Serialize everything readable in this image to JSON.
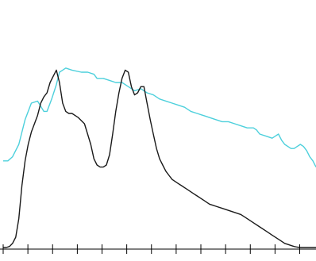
{
  "chart_data": {
    "type": "line",
    "title": "",
    "xlabel": "",
    "ylabel": "",
    "xlim": [
      0,
      100
    ],
    "ylim": [
      0,
      100
    ],
    "grid": false,
    "legend": "none",
    "x_ticks": [
      0,
      7.9,
      15.8,
      23.7,
      31.6,
      39.5,
      47.4,
      55.3,
      63.2,
      71.1,
      79.0,
      86.9,
      94.8
    ],
    "series": [
      {
        "color": "#4dd0dc",
        "x": [
          0,
          1.5,
          3,
          5,
          7,
          9,
          11,
          13,
          14,
          15.5,
          17,
          18,
          19,
          20,
          22,
          25,
          27,
          29,
          30,
          32,
          34,
          36,
          38,
          40,
          42,
          44,
          46,
          48,
          50,
          52,
          54,
          56,
          58,
          60,
          62,
          64,
          66,
          68,
          70,
          72,
          74,
          76,
          78,
          80,
          81,
          82,
          84,
          86,
          87,
          88,
          89,
          90,
          91,
          92,
          93,
          94,
          95,
          96,
          97,
          98,
          99,
          100
        ],
        "y": [
          42,
          42,
          44,
          50,
          62,
          70,
          71,
          66,
          66,
          72,
          79,
          85,
          86,
          87,
          86,
          85,
          85,
          84,
          82,
          82,
          81,
          80,
          80,
          78,
          76,
          77,
          75,
          74,
          72,
          71,
          70,
          69,
          68,
          66,
          65,
          64,
          63,
          62,
          61,
          61,
          60,
          59,
          58,
          58,
          57,
          55,
          54,
          53,
          54,
          55,
          52,
          50,
          49,
          48,
          48,
          49,
          50,
          49,
          47,
          44,
          42,
          39
        ]
      },
      {
        "color": "#1a1a1a",
        "x": [
          0,
          1,
          2,
          3,
          4,
          5,
          6,
          7,
          8,
          9,
          10,
          11,
          12,
          13,
          14,
          15,
          16,
          17,
          18,
          19,
          20,
          21,
          22,
          23,
          24,
          26,
          28,
          29,
          30,
          31,
          32,
          33,
          34,
          35,
          36,
          37,
          38,
          39,
          40,
          41,
          42,
          43,
          44,
          45,
          46,
          47,
          48,
          49,
          50,
          51,
          52,
          53,
          54,
          55,
          56,
          57,
          58,
          59,
          60,
          61,
          62,
          63,
          64,
          65,
          66,
          67,
          68,
          70,
          72,
          74,
          76,
          78,
          80,
          82,
          84,
          86,
          88,
          89,
          90,
          91,
          92,
          93,
          94,
          95,
          96,
          97,
          98,
          99,
          100
        ],
        "y": [
          0,
          0,
          0.5,
          2,
          5,
          14,
          30,
          42,
          50,
          56,
          60,
          64,
          70,
          73,
          75,
          80,
          83,
          86,
          80,
          70,
          66,
          65,
          65,
          64,
          63,
          60,
          50,
          43,
          40,
          39,
          39,
          40,
          45,
          55,
          66,
          75,
          82,
          86,
          85,
          78,
          74,
          75,
          78,
          78,
          70,
          62,
          55,
          48,
          43,
          40,
          37,
          35,
          33,
          32,
          31,
          30,
          29,
          28,
          27,
          26,
          25,
          24,
          23,
          22,
          21,
          20.5,
          20,
          19,
          18,
          17,
          16,
          14,
          12,
          10,
          8,
          6,
          4,
          3,
          2,
          1.5,
          1,
          0.5,
          0.2,
          0,
          0,
          0,
          0,
          0,
          0
        ]
      }
    ]
  }
}
